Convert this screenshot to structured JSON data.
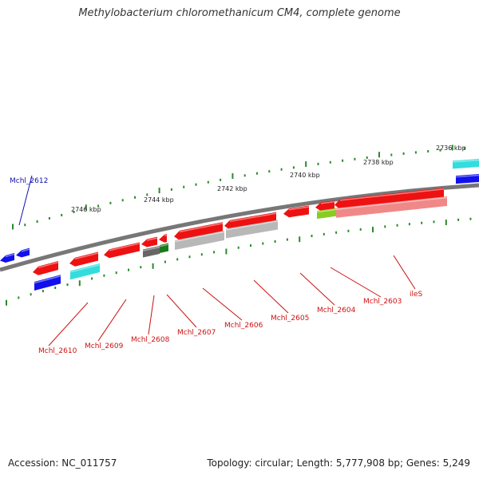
{
  "title": "Methylobacterium chloromethanicum CM4, complete genome",
  "footer": {
    "accession": "Accession: NC_011757",
    "summary": "Topology: circular; Length: 5,777,908 bp; Genes: 5,249"
  },
  "kbp_labels": [
    "2736 kbp",
    "2738 kbp",
    "2740 kbp",
    "2742 kbp",
    "2744 kbp",
    "2746 kbp"
  ],
  "gene_labels": [
    "Mchl_2612",
    "Mchl_2610",
    "Mchl_2609",
    "Mchl_2608",
    "Mchl_2607",
    "Mchl_2606",
    "Mchl_2605",
    "Mchl_2604",
    "Mchl_2603",
    "ileS"
  ],
  "colors": {
    "forward_cds": "#ee1111",
    "reverse_cds": "#1111ee",
    "light_gray": "#b8b8b8",
    "dark_gray": "#666666",
    "green": "#1a7a1a",
    "lime": "#88cc22",
    "cyan": "#33dddd",
    "pink": "#f08888",
    "backbone": "#777777",
    "tick": "#2a8a2a",
    "red_label": "#cc1111",
    "blue_label": "#1111aa"
  }
}
